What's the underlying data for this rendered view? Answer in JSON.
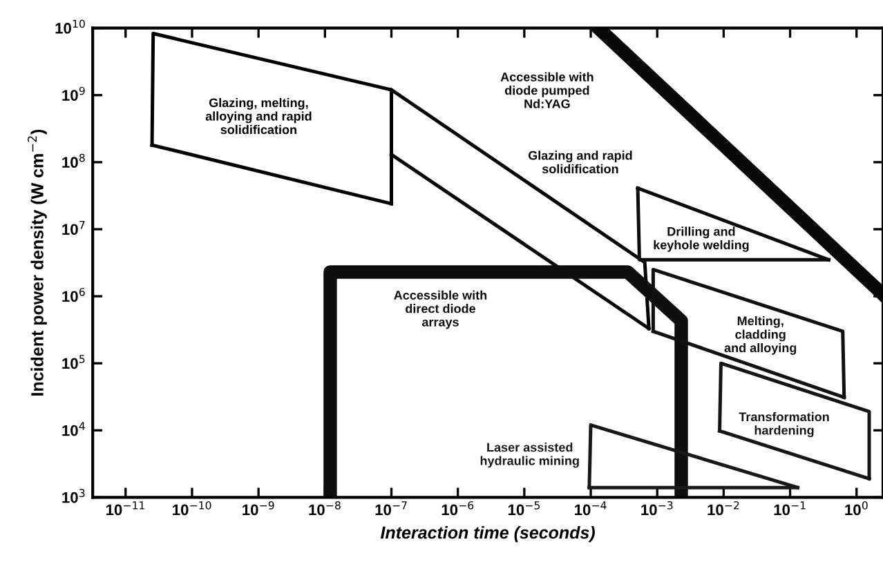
{
  "chart_data": {
    "type": "line",
    "xlabel": "Interaction time (seconds)",
    "ylabel": "Incident power density (W cm$^{−2}$)",
    "log": "xy",
    "grid": false,
    "legend": false,
    "marker": "none",
    "line_style": "solid",
    "xlim": [
      3.2e-12,
      2.5
    ],
    "ylim": [
      1000,
      10000000000
    ],
    "xticks": [
      {
        "value": 1e-11,
        "label": "10$^{−11}$"
      },
      {
        "value": 1e-10,
        "label": "10$^{−10}$"
      },
      {
        "value": 1e-09,
        "label": "10$^{−9}$"
      },
      {
        "value": 1e-08,
        "label": "10$^{−8}$"
      },
      {
        "value": 1e-07,
        "label": "10$^{−7}$"
      },
      {
        "value": 1e-06,
        "label": "10$^{−6}$"
      },
      {
        "value": 1e-05,
        "label": "10$^{−5}$"
      },
      {
        "value": 0.0001,
        "label": "10$^{−4}$"
      },
      {
        "value": 0.001,
        "label": "10$^{−3}$"
      },
      {
        "value": 0.01,
        "label": "10$^{−2}$"
      },
      {
        "value": 0.1,
        "label": "10$^{−1}$"
      },
      {
        "value": 1,
        "label": "10$^{0}$"
      }
    ],
    "yticks": [
      {
        "value": 1000,
        "label": "10$^{3}$"
      },
      {
        "value": 10000,
        "label": "10$^{4}$"
      },
      {
        "value": 100000,
        "label": "10$^{5}$"
      },
      {
        "value": 1000000,
        "label": "10$^{6}$"
      },
      {
        "value": 10000000,
        "label": "10$^{7}$"
      },
      {
        "value": 100000000,
        "label": "10$^{8}$"
      },
      {
        "value": 1000000000,
        "label": "10$^{9}$"
      },
      {
        "value": 10000000000,
        "label": "10$^{10}$"
      }
    ],
    "series": [
      {
        "name": "Glazing, melting,\nalloying and rapid\nsolidification",
        "color": "#000000",
        "x": [
          2.5e-11,
          2.6e-11,
          1e-07,
          1e-07
        ],
        "values": [
          180000000.0,
          8300000000.0,
          1200000000.0,
          24000000.0
        ]
      },
      {
        "color": "#020202",
        "x": [
          2.5e-11,
          1e-07
        ],
        "values": [
          180000000.0,
          24000000.0
        ]
      },
      {
        "name": "Glazing and rapid\nsolidification",
        "color": "#040404",
        "x": [
          1e-07,
          0.00065,
          0.00075
        ],
        "values": [
          1200000000.0,
          3200000.0,
          330000.0
        ]
      },
      {
        "color": "#060606",
        "x": [
          1e-07,
          0.00075
        ],
        "values": [
          130000000.0,
          330000.0
        ]
      },
      {
        "name": "Accessible with\ndiode pumped\nNd:YAG",
        "color": "#080808",
        "x": [
          0.00013,
          2.4
        ],
        "values": [
          10000000000.0,
          1100000.0
        ]
      },
      {
        "name": "Drilling and\nkeyhole welding",
        "color": "#0a0a0a",
        "x": [
          0.00051,
          0.38
        ],
        "values": [
          41000000.0,
          3500000.0
        ]
      },
      {
        "color": "#0c0c0c",
        "x": [
          0.00051,
          0.00054,
          0.38
        ],
        "values": [
          41000000.0,
          3500000.0,
          3500000.0
        ]
      },
      {
        "name": "Accessible with\ndirect diode\narrays",
        "color": "#0e0e0e",
        "x": [
          1.2e-08,
          1.2e-08,
          0.00036,
          0.0023,
          0.0023
        ],
        "values": [
          1000,
          2300000.0,
          2300000.0,
          430000.0,
          1000
        ]
      },
      {
        "name": "Melting,\ncladding\nand alloying",
        "color": "#101010",
        "x": [
          0.00087,
          0.00087,
          0.62,
          0.65
        ],
        "values": [
          300000.0,
          2500000.0,
          300000.0,
          31000.0
        ]
      },
      {
        "color": "#121212",
        "x": [
          0.00087,
          0.65
        ],
        "values": [
          300000.0,
          31000.0
        ]
      },
      {
        "name": "Transformation\nhardening",
        "color": "#141414",
        "x": [
          0.0087,
          0.0091,
          1.55,
          1.55
        ],
        "values": [
          9800.0,
          100000.0,
          19000.0,
          1900.0
        ]
      },
      {
        "color": "#161616",
        "x": [
          0.0087,
          1.55
        ],
        "values": [
          9800.0,
          1900.0
        ]
      },
      {
        "name": "Laser assisted\nhydraulic mining",
        "color": "#181818",
        "x": [
          9.5e-05,
          0.0001,
          0.13
        ],
        "values": [
          1400.0,
          12000.0,
          1400.0
        ]
      },
      {
        "color": "#1a1a1a",
        "x": [
          9.5e-05,
          0.13
        ],
        "values": [
          1400.0,
          1400.0
        ]
      }
    ]
  }
}
